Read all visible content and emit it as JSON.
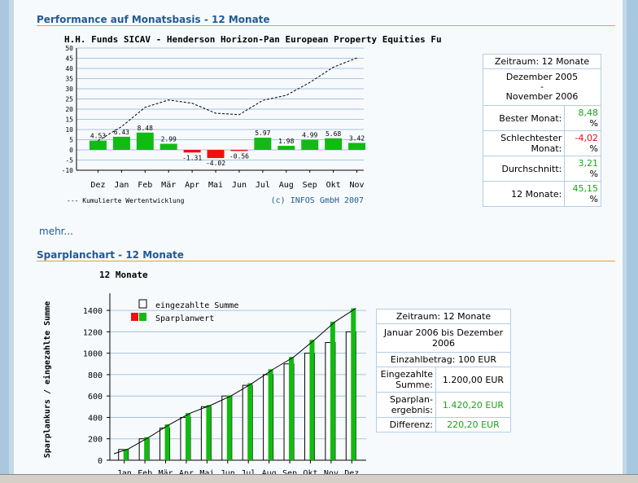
{
  "perf": {
    "section_title": "Performance auf Monatsbasis - 12 Monate",
    "more_link": "mehr...",
    "table": {
      "zeitraum": "Zeitraum: 12 Monate",
      "period_from": "Dezember 2005",
      "period_dash": "-",
      "period_to": "November 2006",
      "rows": [
        {
          "label": "Bester Monat:",
          "value": "8,48",
          "unit": "%"
        },
        {
          "label": "Schlechtester Monat:",
          "value": "-4,02",
          "unit": "%"
        },
        {
          "label": "Durchschnitt:",
          "value": "3,21",
          "unit": "%"
        },
        {
          "label": "12 Monate:",
          "value": "45,15",
          "unit": "%"
        }
      ]
    }
  },
  "spar": {
    "section_title": "Sparplanchart - 12 Monate",
    "table": {
      "zeitraum": "Zeitraum: 12 Monate",
      "period": "Januar 2006 bis Dezember 2006",
      "einzahlbetrag": "Einzahlbetrag: 100 EUR",
      "rows": [
        {
          "label": "Eingezahlte Summe:",
          "value": "1.200,00 EUR"
        },
        {
          "label": "Sparplan-ergebnis:",
          "value": "1.420,20 EUR"
        },
        {
          "label": "Differenz:",
          "value": "220,20 EUR"
        }
      ]
    }
  },
  "colors": {
    "positive": "#11bb11",
    "negative": "#ee1111",
    "title": "#1f5a96",
    "rule": "#e6a03a"
  },
  "chart_data": [
    {
      "type": "bar",
      "title": "H.H. Funds SICAV - Henderson Horizon-Pan European Property Equities Fu",
      "categories": [
        "Dez",
        "Jan",
        "Feb",
        "Mär",
        "Apr",
        "Mai",
        "Jun",
        "Jul",
        "Aug",
        "Sep",
        "Okt",
        "Nov"
      ],
      "values": [
        4.53,
        6.43,
        8.48,
        2.99,
        -1.31,
        -4.02,
        -0.56,
        5.97,
        1.98,
        4.99,
        5.68,
        3.42
      ],
      "value_labels": [
        "4.53",
        "6.43",
        "8.48",
        "2.99",
        "-1.31",
        "-4.02",
        "-0.56",
        "5.97",
        "1.98",
        "4.99",
        "5.68",
        "3.42"
      ],
      "cumulative": [
        4.53,
        11.4,
        20.9,
        24.5,
        22.9,
        18.0,
        17.3,
        24.3,
        26.8,
        33.1,
        40.6,
        45.15
      ],
      "ylim": [
        -10,
        50
      ],
      "yticks": [
        "50",
        "45",
        "40",
        "35",
        "30",
        "25",
        "20",
        "15",
        "10",
        "5",
        "0",
        "-5",
        "-10"
      ],
      "legend": "--- Kumulierte Wertentwicklung",
      "copyright": "(c) INFOS GmbH 2007"
    },
    {
      "type": "bar",
      "title": "12 Monate",
      "ylabel": "Sparplankurs / eingezahlte Summe",
      "categories": [
        "Jan",
        "Feb",
        "Mär",
        "Apr",
        "Mai",
        "Jun",
        "Jul",
        "Aug",
        "Sep",
        "Okt",
        "Nov",
        "Dez"
      ],
      "series": [
        {
          "name": "eingezahlte Summe",
          "values": [
            100,
            200,
            300,
            400,
            500,
            600,
            700,
            800,
            900,
            1000,
            1100,
            1200
          ]
        },
        {
          "name": "Sparplanwert",
          "values": [
            105,
            215,
            335,
            440,
            515,
            605,
            720,
            850,
            965,
            1125,
            1295,
            1420
          ]
        }
      ],
      "ylim": [
        0,
        1500
      ],
      "yticks": [
        "0",
        "200",
        "400",
        "600",
        "800",
        "1000",
        "1200",
        "1400"
      ]
    }
  ]
}
